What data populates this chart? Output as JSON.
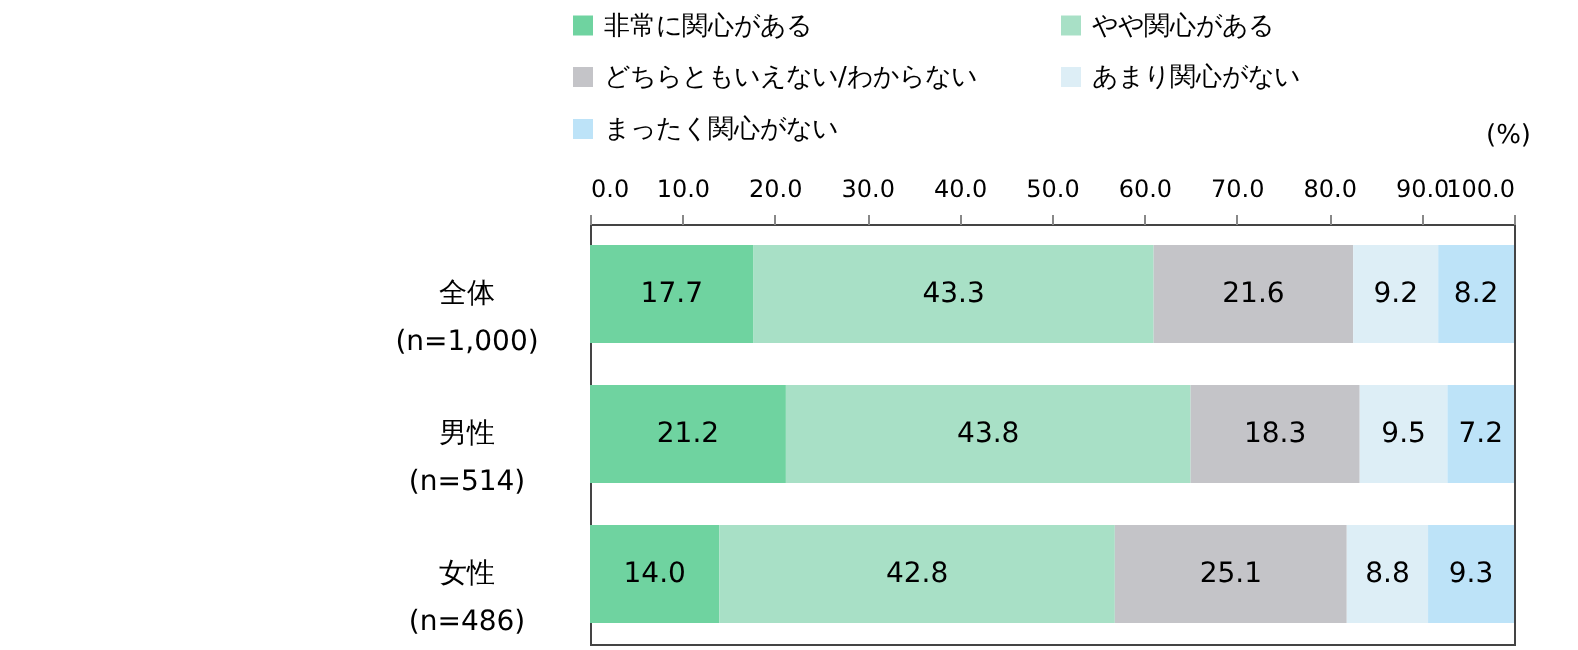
{
  "chart_data": {
    "type": "bar",
    "orientation": "horizontal",
    "stacked": true,
    "xlabel": "(%)",
    "categories": [
      "全体\n(n=1,000)",
      "男性\n(n=514)",
      "女性\n(n=486)"
    ],
    "series": [
      {
        "name": "非常に関心がある",
        "color": "#6fd3a0",
        "values": [
          17.7,
          21.2,
          14.0
        ],
        "value_labels": [
          "17.7",
          "21.2",
          "14.0"
        ]
      },
      {
        "name": "やや関心がある",
        "color": "#a8e0c6",
        "values": [
          43.3,
          43.8,
          42.8
        ],
        "value_labels": [
          "43.3",
          "43.8",
          "42.8"
        ]
      },
      {
        "name": "どちらともいえない/わからない",
        "color": "#c4c4c8",
        "values": [
          21.6,
          18.3,
          25.1
        ],
        "value_labels": [
          "21.6",
          "18.3",
          "25.1"
        ]
      },
      {
        "name": "あまり関心がない",
        "color": "#ddeef6",
        "values": [
          9.2,
          9.5,
          8.8
        ],
        "value_labels": [
          "9.2",
          "9.5",
          "8.8"
        ]
      },
      {
        "name": "まったく関心がない",
        "color": "#bde3f8",
        "values": [
          8.2,
          7.2,
          9.3
        ],
        "value_labels": [
          "8.2",
          "7.2",
          "9.3"
        ]
      }
    ],
    "xlim": [
      0,
      100
    ],
    "xticks": [
      {
        "value": 0,
        "label": "0.0"
      },
      {
        "value": 10,
        "label": "10.0"
      },
      {
        "value": 20,
        "label": "20.0"
      },
      {
        "value": 30,
        "label": "30.0"
      },
      {
        "value": 40,
        "label": "40.0"
      },
      {
        "value": 50,
        "label": "50.0"
      },
      {
        "value": 60,
        "label": "60.0"
      },
      {
        "value": 70,
        "label": "70.0"
      },
      {
        "value": 80,
        "label": "80.0"
      },
      {
        "value": 90,
        "label": "90.0"
      },
      {
        "value": 100,
        "label": "100.0"
      }
    ],
    "legend": "top left",
    "grid": false
  }
}
